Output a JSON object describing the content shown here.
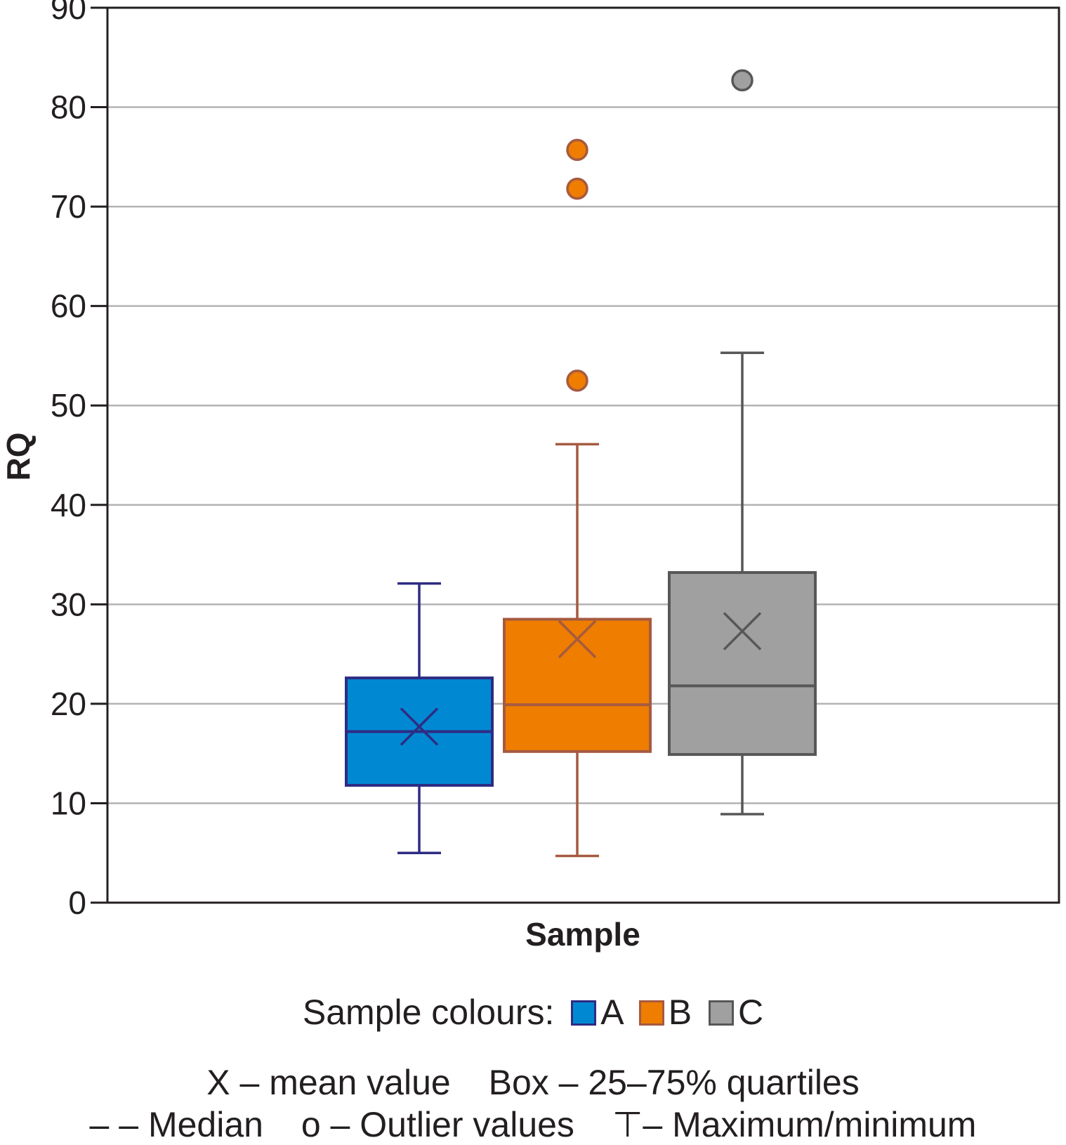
{
  "chart_data": {
    "type": "box",
    "xlabel": "Sample",
    "ylabel": "RQ",
    "ylim": [
      0,
      90
    ],
    "yticks": [
      0,
      10,
      20,
      30,
      40,
      50,
      60,
      70,
      80,
      90
    ],
    "grid": true,
    "series": [
      {
        "name": "A",
        "min": 5,
        "q1": 11.8,
        "median": 17.2,
        "mean": 17.7,
        "q3": 22.6,
        "max": 32.1,
        "outliers": [],
        "fill": "#0089d2",
        "stroke": "#2e2c83"
      },
      {
        "name": "B",
        "min": 4.7,
        "q1": 15.2,
        "median": 19.9,
        "mean": 26.5,
        "q3": 28.5,
        "max": 46.1,
        "outliers": [
          52.5,
          71.8,
          75.7
        ],
        "fill": "#ee7d00",
        "stroke": "#a65a40"
      },
      {
        "name": "C",
        "min": 8.9,
        "q1": 14.9,
        "median": 21.8,
        "mean": 27.3,
        "q3": 33.2,
        "max": 55.3,
        "outliers": [
          82.7
        ],
        "fill": "#a0a0a0",
        "stroke": "#575757"
      }
    ]
  },
  "legend": {
    "prefix": "Sample colours:",
    "items": [
      {
        "label": "A",
        "color": "#0089d2",
        "border": "#2e2c83"
      },
      {
        "label": "B",
        "color": "#ee7d00",
        "border": "#a65a40"
      },
      {
        "label": "C",
        "color": "#a0a0a0",
        "border": "#575757"
      }
    ]
  },
  "notes": {
    "mean": "X – mean value",
    "box": "Box – 25–75% quartiles",
    "median": "– – Median",
    "outlier": "o – Outlier values",
    "maxmin": "⊤– Maximum/minimum"
  }
}
